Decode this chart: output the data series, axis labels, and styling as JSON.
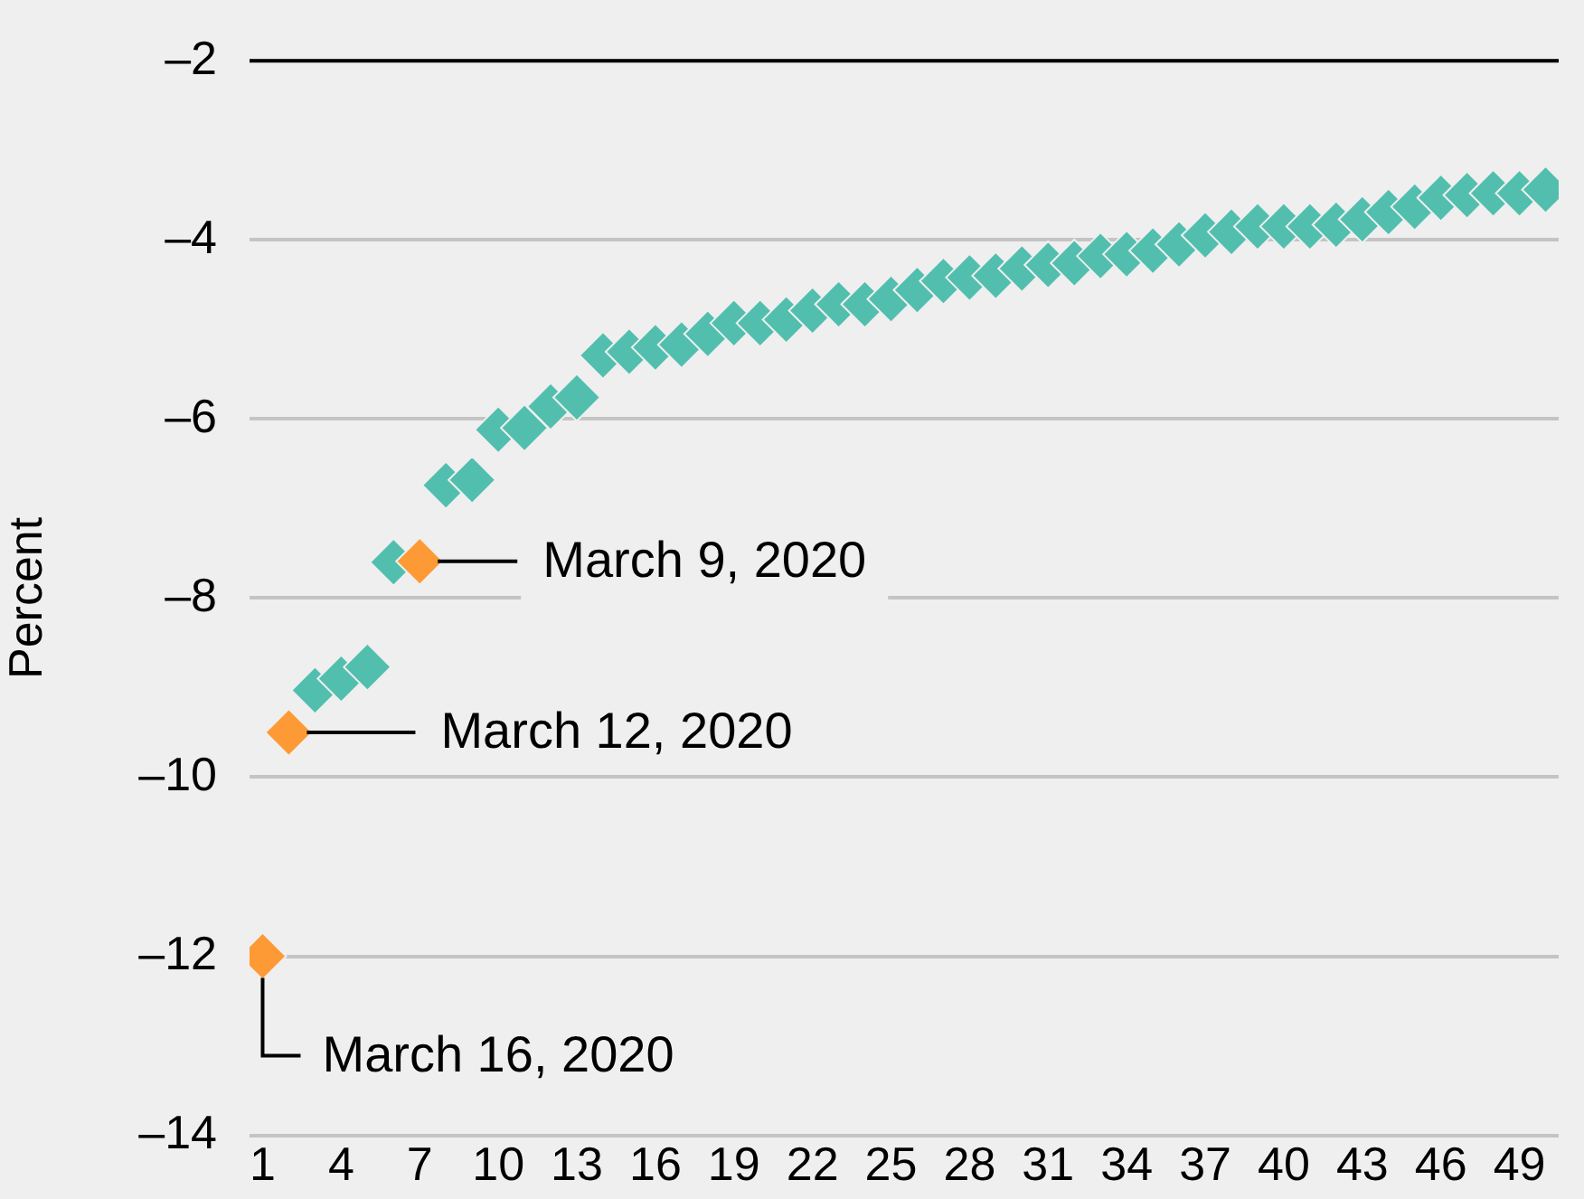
{
  "chart_data": {
    "type": "scatter",
    "ylabel": "Percent",
    "marker": "diamond",
    "grid": "y",
    "legend": false,
    "x": [
      1,
      2,
      3,
      4,
      5,
      6,
      7,
      8,
      9,
      10,
      11,
      12,
      13,
      14,
      15,
      16,
      17,
      18,
      19,
      20,
      21,
      22,
      23,
      24,
      25,
      26,
      27,
      28,
      29,
      30,
      31,
      32,
      33,
      34,
      35,
      36,
      37,
      38,
      39,
      40,
      41,
      42,
      43,
      44,
      45,
      46,
      47,
      48,
      49,
      50
    ],
    "xlim": [
      0.5,
      50.5
    ],
    "xticks": [
      1,
      4,
      7,
      10,
      13,
      16,
      19,
      22,
      25,
      28,
      31,
      34,
      37,
      40,
      43,
      46,
      49
    ],
    "ylim": [
      -14,
      -2
    ],
    "yticks": [
      {
        "value": -14,
        "label": "–14"
      },
      {
        "value": -12,
        "label": "–12"
      },
      {
        "value": -10,
        "label": "–10"
      },
      {
        "value": -8,
        "label": "–8"
      },
      {
        "value": -6,
        "label": "–6"
      },
      {
        "value": -4,
        "label": "–4"
      },
      {
        "value": -2,
        "label": "–2"
      }
    ],
    "series": [
      {
        "colors": [
          "#fd9a35",
          "#fd9a35",
          "#52bfae",
          "#52bfae",
          "#52bfae",
          "#52bfae",
          "#fd9a35",
          "#52bfae",
          "#52bfae",
          "#52bfae",
          "#52bfae",
          "#52bfae",
          "#52bfae",
          "#52bfae",
          "#52bfae",
          "#52bfae",
          "#52bfae",
          "#52bfae",
          "#52bfae",
          "#52bfae",
          "#52bfae",
          "#52bfae",
          "#52bfae",
          "#52bfae",
          "#52bfae",
          "#52bfae",
          "#52bfae",
          "#52bfae",
          "#52bfae",
          "#52bfae",
          "#52bfae",
          "#52bfae",
          "#52bfae",
          "#52bfae",
          "#52bfae",
          "#52bfae",
          "#52bfae",
          "#52bfae",
          "#52bfae",
          "#52bfae",
          "#52bfae",
          "#52bfae",
          "#52bfae",
          "#52bfae",
          "#52bfae",
          "#52bfae",
          "#52bfae",
          "#52bfae",
          "#52bfae",
          "#52bfae"
        ],
        "values": [
          -12,
          -9.5,
          -9.03,
          -8.9,
          -8.77,
          -7.6,
          -7.59,
          -6.74,
          -6.68,
          -6.12,
          -6.1,
          -5.86,
          -5.76,
          -5.29,
          -5.25,
          -5.2,
          -5.17,
          -5.05,
          -4.93,
          -4.93,
          -4.89,
          -4.79,
          -4.72,
          -4.72,
          -4.66,
          -4.56,
          -4.46,
          -4.42,
          -4.4,
          -4.32,
          -4.28,
          -4.26,
          -4.18,
          -4.16,
          -4.12,
          -4.05,
          -3.95,
          -3.91,
          -3.85,
          -3.85,
          -3.85,
          -3.83,
          -3.77,
          -3.69,
          -3.63,
          -3.53,
          -3.5,
          -3.48,
          -3.48,
          -3.44
        ]
      }
    ],
    "annotations": [
      {
        "text": "March 9, 2020",
        "x": 7,
        "y": -7.59
      },
      {
        "text": "March 12, 2020",
        "x": 2,
        "y": -9.5
      },
      {
        "text": "March 16, 2020",
        "x": 1,
        "y": -12
      }
    ]
  }
}
